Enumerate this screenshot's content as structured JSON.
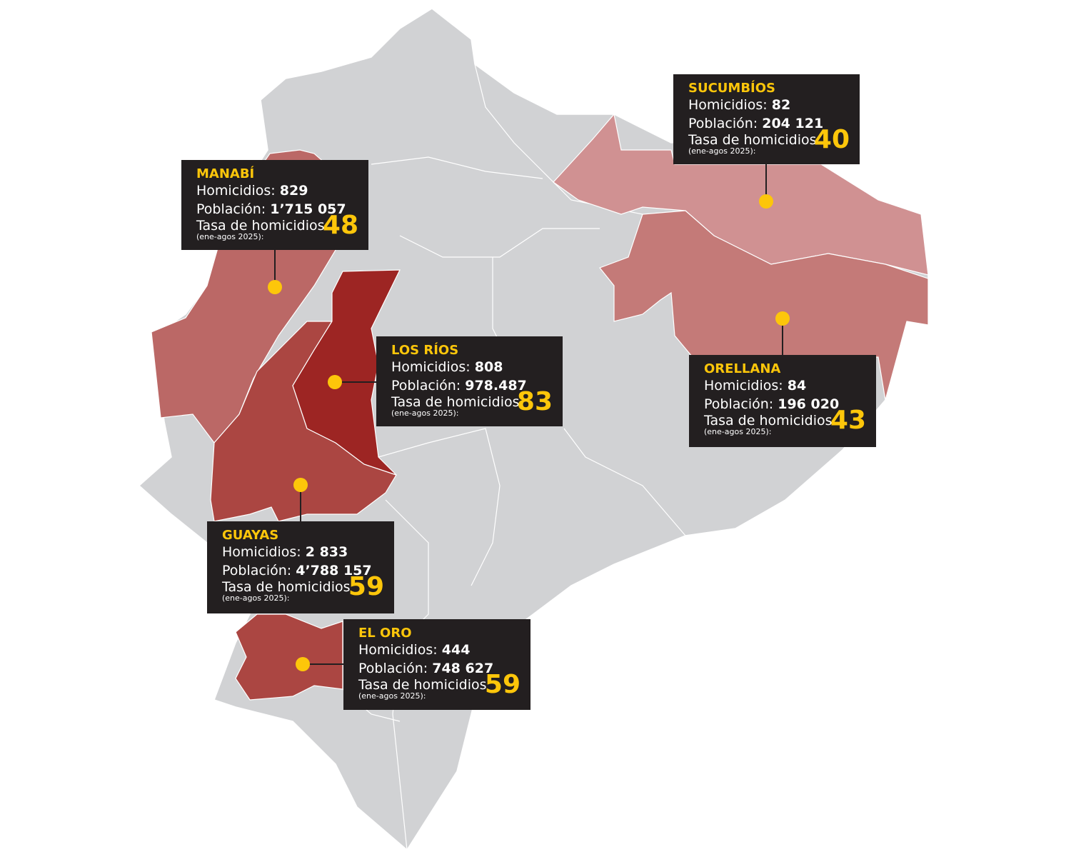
{
  "colors": {
    "country": "#d1d2d4",
    "border": "#ffffff",
    "box": "#231f20",
    "accent": "#fdc60a",
    "manabi": "#bb6866",
    "los_rios": "#9d2523",
    "guayas": "#ab4642",
    "el_oro": "#ab4642",
    "sucumbios": "#d09192",
    "orellana": "#c47a78"
  },
  "labels": {
    "homicidios": "Homicidios:",
    "poblacion": "Población:",
    "tasa": "Tasa de homicidios",
    "periodo": "(ene-agos 2025):"
  },
  "provinces": {
    "sucumbios": {
      "name": "SUCUMBÍOS",
      "homicidios": "82",
      "poblacion": "204 121",
      "tasa": "40"
    },
    "manabi": {
      "name": "MANABÍ",
      "homicidios": "829",
      "poblacion": "1’715 057",
      "tasa": "48"
    },
    "los_rios": {
      "name": "LOS RÍOS",
      "homicidios": "808",
      "poblacion": "978.487",
      "tasa": "83"
    },
    "orellana": {
      "name": "ORELLANA",
      "homicidios": "84",
      "poblacion": "196 020",
      "tasa": "43"
    },
    "guayas": {
      "name": "GUAYAS",
      "homicidios": "2 833",
      "poblacion": "4’788 157",
      "tasa": "59"
    },
    "el_oro": {
      "name": "EL ORO",
      "homicidios": "444",
      "poblacion": "748 627",
      "tasa": "59"
    }
  }
}
